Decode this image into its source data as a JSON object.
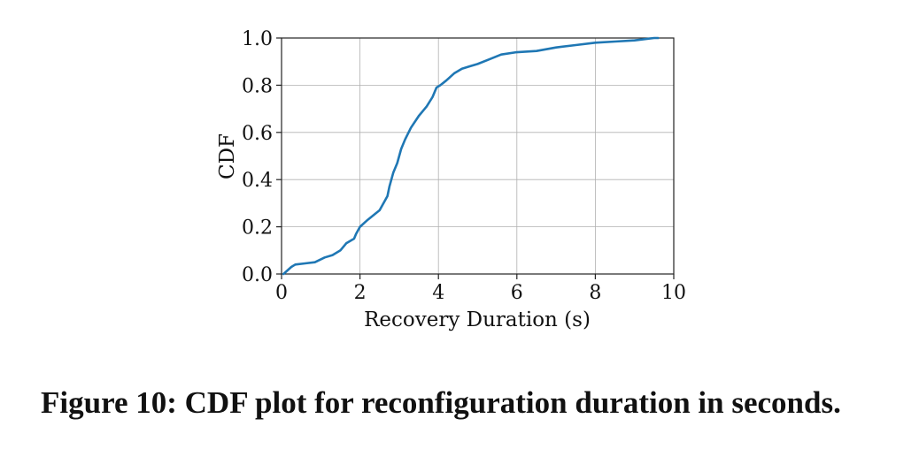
{
  "chart_data": {
    "type": "line",
    "xlabel": "Recovery Duration (s)",
    "ylabel": "CDF",
    "xlim": [
      0,
      10
    ],
    "ylim": [
      0,
      1.0
    ],
    "x_ticks": [
      "0",
      "2",
      "4",
      "6",
      "8",
      "10"
    ],
    "y_ticks": [
      "0.0",
      "0.2",
      "0.4",
      "0.6",
      "0.8",
      "1.0"
    ],
    "grid": true,
    "line_color": "#1f77b4",
    "series": [
      {
        "x": [
          0.05,
          0.25,
          0.35,
          0.6,
          0.85,
          1.1,
          1.3,
          1.5,
          1.65,
          1.85,
          1.9,
          2.0,
          2.2,
          2.5,
          2.6,
          2.7,
          2.75,
          2.85,
          2.95,
          3.05,
          3.15,
          3.3,
          3.5,
          3.7,
          3.85,
          3.95,
          4.05,
          4.2,
          4.4,
          4.6,
          4.8,
          5.0,
          5.3,
          5.6,
          6.0,
          6.5,
          7.0,
          7.5,
          8.0,
          8.5,
          9.0,
          9.5,
          9.6
        ],
        "y": [
          0.0,
          0.03,
          0.04,
          0.045,
          0.05,
          0.07,
          0.08,
          0.1,
          0.13,
          0.15,
          0.17,
          0.2,
          0.23,
          0.27,
          0.3,
          0.33,
          0.37,
          0.43,
          0.47,
          0.53,
          0.57,
          0.62,
          0.67,
          0.71,
          0.75,
          0.79,
          0.8,
          0.82,
          0.85,
          0.87,
          0.88,
          0.89,
          0.91,
          0.93,
          0.94,
          0.945,
          0.96,
          0.97,
          0.98,
          0.985,
          0.99,
          1.0,
          1.0
        ]
      }
    ]
  },
  "caption": "Figure 10: CDF plot for reconfiguration duration in seconds."
}
